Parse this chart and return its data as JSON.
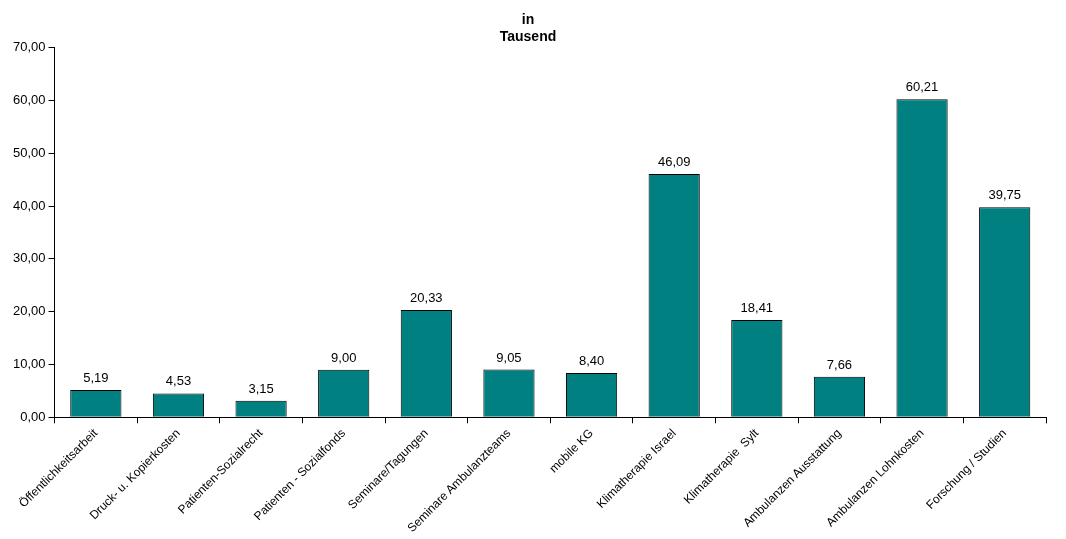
{
  "chart_data": {
    "type": "bar",
    "title": "in\nTausend",
    "categories": [
      "Öffentlichkeitsarbeit",
      "Druck- u. Kopierkosten",
      "Patienten-Sozialrecht",
      "Patienten - Sozialfonds",
      "Seminare/Tagungen",
      "Seminare Ambulanzteams",
      "mobile KG",
      "Klimatherapie Israel",
      "Klimatherapie  Sylt",
      "Ambulanzen Ausstattung",
      "Ambulanzen Lohnkosten",
      "Forschung / Studien"
    ],
    "values": [
      5.19,
      4.53,
      3.15,
      9.0,
      20.33,
      9.05,
      8.4,
      46.09,
      18.41,
      7.66,
      60.21,
      39.75
    ],
    "value_labels": [
      "5,19",
      "4,53",
      "3,15",
      "9,00",
      "20,33",
      "9,05",
      "8,40",
      "46,09",
      "18,41",
      "7,66",
      "60,21",
      "39,75"
    ],
    "color": "#008080",
    "ylim": [
      0,
      70
    ],
    "yticks": [
      {
        "value": 0,
        "label": "0,00"
      },
      {
        "value": 10,
        "label": "10,00"
      },
      {
        "value": 20,
        "label": "20,00"
      },
      {
        "value": 30,
        "label": "30,00"
      },
      {
        "value": 40,
        "label": "40,00"
      },
      {
        "value": 50,
        "label": "50,00"
      },
      {
        "value": 60,
        "label": "60,00"
      },
      {
        "value": 70,
        "label": "70,00"
      }
    ],
    "grid": false,
    "legend": false
  }
}
